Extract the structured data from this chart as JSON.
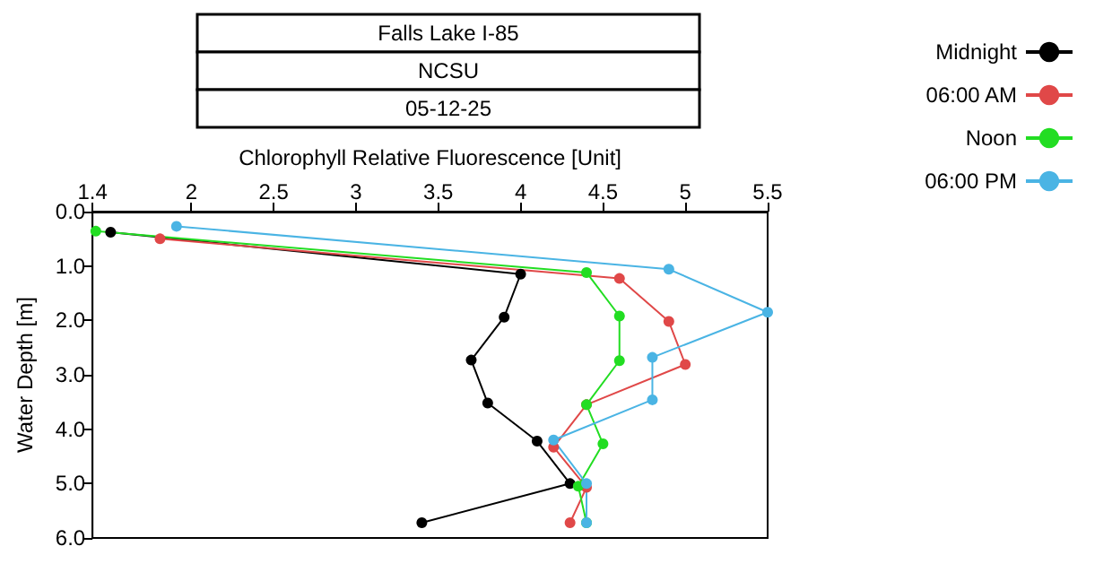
{
  "chart_data": {
    "type": "line",
    "title": "Falls Lake I-85",
    "subtitle": "NCSU",
    "annotations": [
      "05-12-25"
    ],
    "xlabel": "Chlorophyll Relative Fluorescence [Unit]",
    "ylabel": "Water Depth [m]",
    "xlim": [
      1.4,
      5.5
    ],
    "xticks": [
      1.4,
      2,
      2.5,
      3,
      3.5,
      4,
      4.5,
      5,
      5.5
    ],
    "ylim": [
      6,
      0
    ],
    "yticks": [
      {
        "value": 0,
        "label": "0.0"
      },
      {
        "value": 1,
        "label": "1.0"
      },
      {
        "value": 2,
        "label": "2.0"
      },
      {
        "value": 3,
        "label": "3.0"
      },
      {
        "value": 4,
        "label": "4.0"
      },
      {
        "value": 5,
        "label": "5.0"
      },
      {
        "value": 6,
        "label": "6.0"
      }
    ],
    "grid": false,
    "legend": "top right",
    "marker": "circle",
    "line_style": "solid",
    "series": [
      {
        "name": "Midnight",
        "color": "#000000",
        "x": [
          1.51,
          4.0,
          3.9,
          3.7,
          3.8,
          4.1,
          4.3,
          3.4
        ],
        "values": [
          0.38,
          1.15,
          1.94,
          2.73,
          3.52,
          4.22,
          5.0,
          5.72
        ]
      },
      {
        "name": "06:00 AM",
        "color": "#e04848",
        "x": [
          1.81,
          4.6,
          4.9,
          5.0,
          4.4,
          4.2,
          4.4,
          4.3
        ],
        "values": [
          0.5,
          1.23,
          2.02,
          2.81,
          3.55,
          4.33,
          5.07,
          5.72
        ]
      },
      {
        "name": "Noon",
        "color": "#22dd22",
        "x": [
          1.42,
          4.4,
          4.6,
          4.6,
          4.4,
          4.5,
          4.35,
          4.4
        ],
        "values": [
          0.36,
          1.12,
          1.92,
          2.74,
          3.55,
          4.27,
          5.05,
          5.72
        ]
      },
      {
        "name": "06:00 PM",
        "color": "#4ab4e4",
        "x": [
          1.91,
          4.9,
          5.5,
          4.8,
          4.8,
          4.2,
          4.4,
          4.4
        ],
        "values": [
          0.27,
          1.06,
          1.85,
          2.68,
          3.46,
          4.2,
          5.0,
          5.72
        ]
      }
    ]
  }
}
